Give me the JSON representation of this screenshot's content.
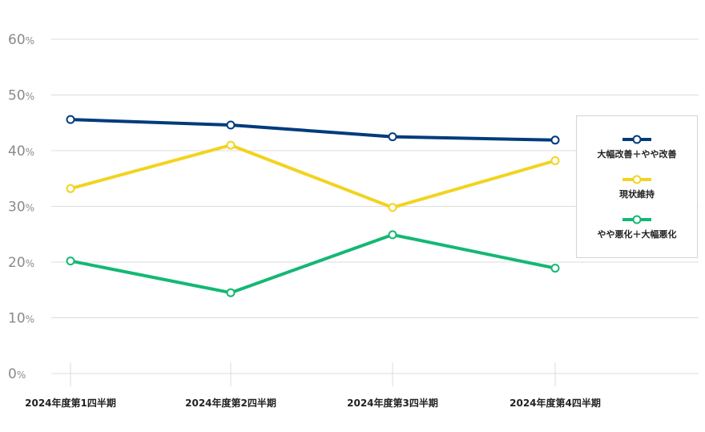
{
  "chart_data": {
    "type": "line",
    "categories": [
      "2024年度第1四半期",
      "2024年度第2四半期",
      "2024年度第3四半期",
      "2024年度第4四半期"
    ],
    "ylim": [
      0,
      60
    ],
    "yticks": [
      0,
      10,
      20,
      30,
      40,
      50,
      60
    ],
    "y_unit": "%",
    "grid": true,
    "legend_position": "right",
    "series": [
      {
        "name": "大幅改善＋やや改善",
        "color": "#003b7c",
        "values": [
          45.6,
          44.6,
          42.5,
          41.9
        ]
      },
      {
        "name": "現状維持",
        "color": "#f2d31f",
        "values": [
          33.2,
          41.0,
          29.8,
          38.2
        ]
      },
      {
        "name": "やや悪化＋大幅悪化",
        "color": "#14b873",
        "values": [
          20.2,
          14.5,
          24.9,
          18.9
        ]
      }
    ]
  }
}
